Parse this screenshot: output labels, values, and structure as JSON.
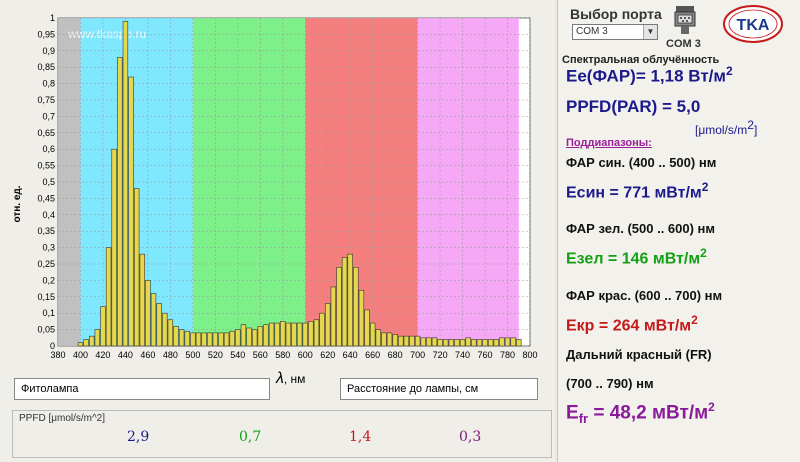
{
  "chart": {
    "watermark": "www.tkaspb.ru",
    "ylabel": "отн. ед.",
    "xlabel_symbol": "λ",
    "xlabel_unit": ", нм",
    "band_colors": {
      "gray": "#c0c0c0",
      "blue": "#7fe8ff",
      "green": "#7df08a",
      "red": "#f57f7f",
      "magenta": "#f5a8f5"
    },
    "bar_color": "#e4d84e"
  },
  "chart_data": {
    "type": "bar",
    "xlabel": "λ, нм",
    "ylabel": "отн. ед.",
    "xlim": [
      380,
      800
    ],
    "ylim": [
      0,
      1
    ],
    "x_ticks": [
      "380",
      "400",
      "420",
      "440",
      "460",
      "480",
      "500",
      "520",
      "540",
      "560",
      "580",
      "600",
      "620",
      "640",
      "660",
      "680",
      "700",
      "720",
      "740",
      "760",
      "780",
      "800"
    ],
    "y_ticks": [
      "0",
      "0,05",
      "0,1",
      "0,15",
      "0,2",
      "0,25",
      "0,3",
      "0,35",
      "0,4",
      "0,45",
      "0,5",
      "0,55",
      "0,6",
      "0,65",
      "0,7",
      "0,75",
      "0,8",
      "0,85",
      "0,9",
      "0,95",
      "1"
    ],
    "bands": [
      {
        "from": 380,
        "to": 400,
        "color": "#c0c0c0"
      },
      {
        "from": 400,
        "to": 500,
        "color": "#7fe8ff"
      },
      {
        "from": 500,
        "to": 600,
        "color": "#7df08a"
      },
      {
        "from": 600,
        "to": 700,
        "color": "#f57f7f"
      },
      {
        "from": 700,
        "to": 790,
        "color": "#f5a8f5"
      }
    ],
    "x": [
      400,
      405,
      410,
      415,
      420,
      425,
      430,
      435,
      440,
      445,
      450,
      455,
      460,
      465,
      470,
      475,
      480,
      485,
      490,
      495,
      500,
      505,
      510,
      515,
      520,
      525,
      530,
      535,
      540,
      545,
      550,
      555,
      560,
      565,
      570,
      575,
      580,
      585,
      590,
      595,
      600,
      605,
      610,
      615,
      620,
      625,
      630,
      635,
      640,
      645,
      650,
      655,
      660,
      665,
      670,
      675,
      680,
      685,
      690,
      695,
      700,
      705,
      710,
      715,
      720,
      725,
      730,
      735,
      740,
      745,
      750,
      755,
      760,
      765,
      770,
      775,
      780,
      785,
      790
    ],
    "values": [
      0.01,
      0.02,
      0.03,
      0.05,
      0.12,
      0.3,
      0.6,
      0.88,
      0.99,
      0.82,
      0.48,
      0.28,
      0.2,
      0.16,
      0.13,
      0.1,
      0.08,
      0.06,
      0.05,
      0.045,
      0.04,
      0.04,
      0.04,
      0.04,
      0.04,
      0.04,
      0.04,
      0.045,
      0.05,
      0.065,
      0.055,
      0.05,
      0.06,
      0.065,
      0.07,
      0.07,
      0.075,
      0.07,
      0.07,
      0.07,
      0.07,
      0.075,
      0.08,
      0.1,
      0.13,
      0.18,
      0.24,
      0.27,
      0.28,
      0.24,
      0.17,
      0.11,
      0.07,
      0.05,
      0.04,
      0.04,
      0.035,
      0.03,
      0.03,
      0.03,
      0.03,
      0.025,
      0.025,
      0.025,
      0.02,
      0.02,
      0.02,
      0.02,
      0.02,
      0.025,
      0.02,
      0.02,
      0.02,
      0.02,
      0.02,
      0.025,
      0.025,
      0.025,
      0.02
    ]
  },
  "fields": {
    "lamp_name": "Фитолампа",
    "distance_label": "Расстояние до лампы,  см"
  },
  "ppfd_panel": {
    "title": "PPFD [μmol/s/m^2]",
    "values": [
      {
        "text": "2,9",
        "color": "#1a1a8c"
      },
      {
        "text": "0,7",
        "color": "#14a014"
      },
      {
        "text": "1,4",
        "color": "#c41a1a"
      },
      {
        "text": "0,3",
        "color": "#7a1a7a"
      }
    ]
  },
  "port": {
    "title": "Выбор порта",
    "selected": "COM 3",
    "com_label": "COM  3"
  },
  "logo_text": "TKA",
  "spectral": {
    "title": "Спектральная облучённость",
    "ee": "Ee(ФАР)= 1,18 Вт/м",
    "ee_sup": "2",
    "ppfd": "PPFD(PAR) = 5,0",
    "ppfd_unit": "[μmol/s/m",
    "ppfd_unit_sup": "2",
    "ppfd_unit_close": "]",
    "sub_title": "Поддиапазоны:",
    "blue_range": "ФАР син. (400 .. 500) нм",
    "blue_val": "Есин = 771 мВт/м",
    "green_range": "ФАР зел. (500 .. 600) нм",
    "green_val": "Езел = 146 мВт/м",
    "red_range": "ФАР крас. (600 .. 700) нм",
    "red_val": "Екр = 264 мВт/м",
    "fr_range1": "Дальний красный (FR)",
    "fr_range2": "(700 .. 790) нм",
    "fr_val_a": "E",
    "fr_val_sub": "fr",
    "fr_val_b": " = 48,2 мВт/м",
    "sup2": "2"
  },
  "colors": {
    "blue": "#1a1a8c",
    "green": "#14a014",
    "red": "#c41a1a",
    "purple": "#8a1a9a"
  }
}
